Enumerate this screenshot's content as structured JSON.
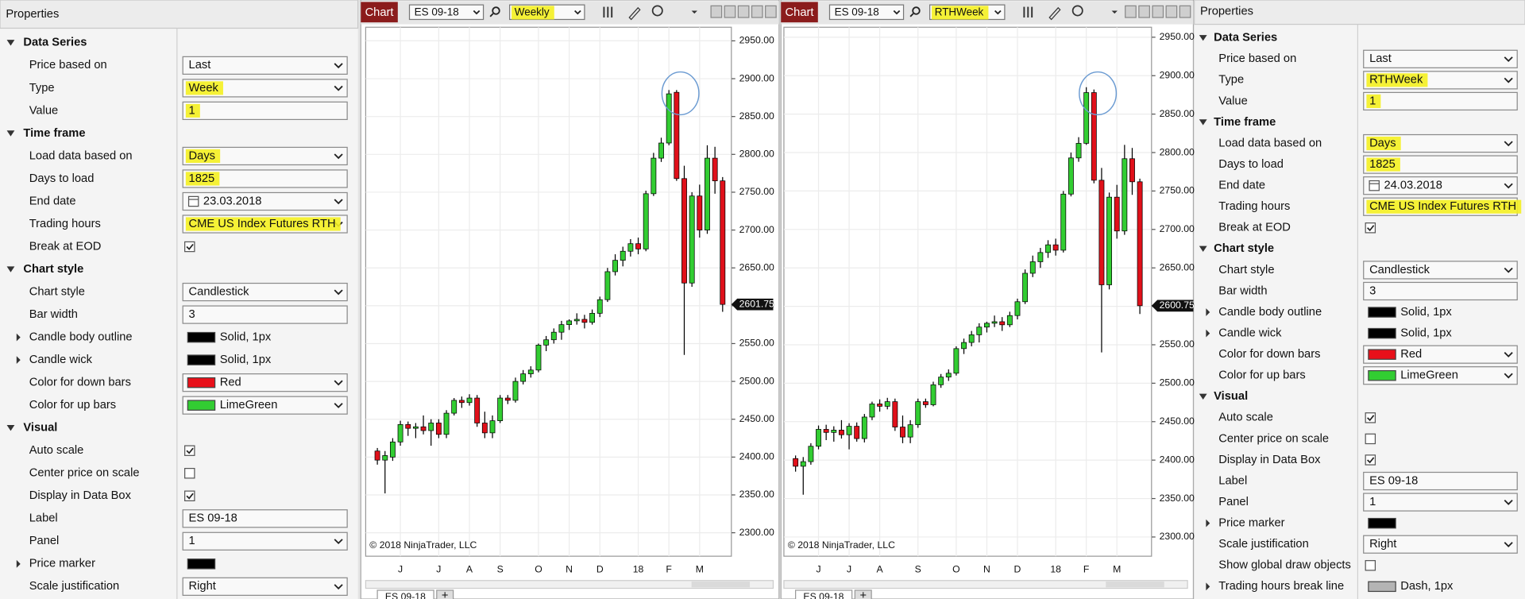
{
  "left_panel": {
    "title": "Properties",
    "sections": [
      {
        "name": "Data Series",
        "rows": [
          {
            "label": "Price based on",
            "kind": "dropdown",
            "value": "Last"
          },
          {
            "label": "Type",
            "kind": "dropdown",
            "value": "Week",
            "highlight": true
          },
          {
            "label": "Value",
            "kind": "text",
            "value": "1",
            "highlight": true
          }
        ]
      },
      {
        "name": "Time frame",
        "rows": [
          {
            "label": "Load data based on",
            "kind": "dropdown",
            "value": "Days",
            "highlight": true
          },
          {
            "label": "Days to load",
            "kind": "text",
            "value": "1825",
            "highlight": true
          },
          {
            "label": "End date",
            "kind": "dropdown",
            "value": "23.03.2018",
            "calendar": true
          },
          {
            "label": "Trading hours",
            "kind": "dropdown",
            "value": "CME US Index Futures RTH",
            "highlight": true
          },
          {
            "label": "Break at EOD",
            "kind": "checkbox",
            "checked": true
          }
        ]
      },
      {
        "name": "Chart style",
        "rows": [
          {
            "label": "Chart style",
            "kind": "dropdown",
            "value": "Candlestick"
          },
          {
            "label": "Bar width",
            "kind": "text",
            "value": "3"
          },
          {
            "label": "Candle body outline",
            "kind": "swatch",
            "expandable": true,
            "swatch": "#000000",
            "value": "Solid, 1px"
          },
          {
            "label": "Candle wick",
            "kind": "swatch",
            "expandable": true,
            "swatch": "#000000",
            "value": "Solid, 1px"
          },
          {
            "label": "Color for down bars",
            "kind": "dropdown",
            "swatch": "#e8101a",
            "value": "Red"
          },
          {
            "label": "Color for up bars",
            "kind": "dropdown",
            "swatch": "#32cd32",
            "value": "LimeGreen"
          }
        ]
      },
      {
        "name": "Visual",
        "rows": [
          {
            "label": "Auto scale",
            "kind": "checkbox",
            "checked": true
          },
          {
            "label": "Center price on scale",
            "kind": "checkbox",
            "checked": false
          },
          {
            "label": "Display in Data Box",
            "kind": "checkbox",
            "checked": true
          },
          {
            "label": "Label",
            "kind": "text",
            "value": "ES 09-18"
          },
          {
            "label": "Panel",
            "kind": "dropdown",
            "value": "1"
          },
          {
            "label": "Price marker",
            "kind": "swatch",
            "expandable": true,
            "swatch": "#000000"
          },
          {
            "label": "Scale justification",
            "kind": "dropdown",
            "value": "Right"
          }
        ]
      }
    ]
  },
  "charts": [
    {
      "toolbar": {
        "button": "Chart",
        "instrument": "ES 09-18",
        "period": "Weekly",
        "period_highlight": true
      },
      "copyright": "© 2018 NinjaTrader, LLC",
      "tab": "ES 09-18",
      "add_tab": "+",
      "up_color": "#32cd32",
      "down_color": "#e0101a",
      "ylim": [
        2269,
        2968
      ],
      "yticks": [
        {
          "value": 2300,
          "label": "2300.00"
        },
        {
          "value": 2350,
          "label": "2350.00"
        },
        {
          "value": 2400,
          "label": "2400.00"
        },
        {
          "value": 2450,
          "label": "2450.00"
        },
        {
          "value": 2500,
          "label": "2500.00"
        },
        {
          "value": 2550,
          "label": "2550.00"
        },
        {
          "value": 2600,
          "label": "2600.00"
        },
        {
          "value": 2650,
          "label": "2650.00"
        },
        {
          "value": 2700,
          "label": "2700.00"
        },
        {
          "value": 2750,
          "label": "2750.00"
        },
        {
          "value": 2800,
          "label": "2800.00"
        },
        {
          "value": 2850,
          "label": "2850.00"
        },
        {
          "value": 2900,
          "label": "2900.00"
        },
        {
          "value": 2950,
          "label": "2950.00"
        }
      ],
      "categories": [
        null,
        null,
        null,
        "J",
        null,
        null,
        null,
        null,
        "J",
        null,
        null,
        null,
        "A",
        null,
        null,
        null,
        "S",
        null,
        null,
        null,
        null,
        "O",
        null,
        null,
        null,
        "N",
        null,
        null,
        null,
        "D",
        null,
        null,
        null,
        null,
        "18",
        null,
        null,
        null,
        "F",
        null,
        null,
        null,
        "M",
        null,
        null,
        null
      ],
      "ohlc": [
        [
          2408,
          2412,
          2390,
          2396
        ],
        [
          2396,
          2408,
          2352,
          2402
        ],
        [
          2400,
          2425,
          2395,
          2420
        ],
        [
          2420,
          2448,
          2415,
          2443
        ],
        [
          2443,
          2447,
          2428,
          2438
        ],
        [
          2438,
          2445,
          2425,
          2440
        ],
        [
          2440,
          2455,
          2430,
          2435
        ],
        [
          2435,
          2450,
          2415,
          2445
        ],
        [
          2445,
          2450,
          2425,
          2430
        ],
        [
          2430,
          2462,
          2425,
          2458
        ],
        [
          2458,
          2478,
          2455,
          2475
        ],
        [
          2475,
          2480,
          2465,
          2472
        ],
        [
          2472,
          2483,
          2468,
          2478
        ],
        [
          2478,
          2482,
          2440,
          2445
        ],
        [
          2445,
          2460,
          2425,
          2432
        ],
        [
          2432,
          2455,
          2425,
          2448
        ],
        [
          2448,
          2482,
          2445,
          2478
        ],
        [
          2478,
          2482,
          2470,
          2475
        ],
        [
          2475,
          2505,
          2472,
          2500
        ],
        [
          2500,
          2515,
          2496,
          2510
        ],
        [
          2510,
          2520,
          2505,
          2515
        ],
        [
          2515,
          2550,
          2512,
          2548
        ],
        [
          2548,
          2560,
          2540,
          2555
        ],
        [
          2555,
          2570,
          2550,
          2565
        ],
        [
          2565,
          2580,
          2555,
          2575
        ],
        [
          2575,
          2582,
          2568,
          2580
        ],
        [
          2580,
          2590,
          2575,
          2582
        ],
        [
          2582,
          2588,
          2570,
          2578
        ],
        [
          2578,
          2595,
          2575,
          2590
        ],
        [
          2590,
          2612,
          2585,
          2608
        ],
        [
          2608,
          2650,
          2605,
          2645
        ],
        [
          2645,
          2668,
          2640,
          2660
        ],
        [
          2660,
          2678,
          2652,
          2672
        ],
        [
          2672,
          2688,
          2665,
          2682
        ],
        [
          2682,
          2690,
          2668,
          2675
        ],
        [
          2675,
          2752,
          2672,
          2748
        ],
        [
          2748,
          2802,
          2745,
          2795
        ],
        [
          2795,
          2822,
          2790,
          2815
        ],
        [
          2815,
          2885,
          2812,
          2880
        ],
        [
          2882,
          2885,
          2765,
          2768
        ],
        [
          2768,
          2785,
          2535,
          2630
        ],
        [
          2630,
          2750,
          2625,
          2745
        ],
        [
          2745,
          2760,
          2690,
          2700
        ],
        [
          2700,
          2812,
          2695,
          2795
        ],
        [
          2795,
          2810,
          2748,
          2765
        ],
        [
          2765,
          2770,
          2592,
          2601.75
        ]
      ]
    },
    {
      "toolbar": {
        "button": "Chart",
        "instrument": "ES 09-18",
        "period": "RTHWeek",
        "period_highlight": true
      },
      "copyright": "© 2018 NinjaTrader, LLC",
      "tab": "ES 09-18",
      "add_tab": "+",
      "up_color": "#32cd32",
      "down_color": "#e0101a",
      "ylim": [
        2275,
        2963
      ],
      "yticks": [
        {
          "value": 2300,
          "label": "2300.00"
        },
        {
          "value": 2350,
          "label": "2350.00"
        },
        {
          "value": 2400,
          "label": "2400.00"
        },
        {
          "value": 2450,
          "label": "2450.00"
        },
        {
          "value": 2500,
          "label": "2500.00"
        },
        {
          "value": 2550,
          "label": "2550.00"
        },
        {
          "value": 2600,
          "label": "2600.00"
        },
        {
          "value": 2650,
          "label": "2650.00"
        },
        {
          "value": 2700,
          "label": "2700.00"
        },
        {
          "value": 2750,
          "label": "2750.00"
        },
        {
          "value": 2800,
          "label": "2800.00"
        },
        {
          "value": 2850,
          "label": "2850.00"
        },
        {
          "value": 2900,
          "label": "2900.00"
        },
        {
          "value": 2950,
          "label": "2950.00"
        }
      ],
      "categories": [
        null,
        null,
        null,
        "J",
        null,
        null,
        null,
        "J",
        null,
        null,
        null,
        "A",
        null,
        null,
        null,
        null,
        "S",
        null,
        null,
        null,
        null,
        "O",
        null,
        null,
        null,
        "N",
        null,
        null,
        null,
        "D",
        null,
        null,
        null,
        null,
        "18",
        null,
        null,
        null,
        "F",
        null,
        null,
        null,
        "M",
        null,
        null,
        null
      ],
      "ohlc": [
        [
          2402,
          2406,
          2385,
          2392
        ],
        [
          2392,
          2404,
          2355,
          2398
        ],
        [
          2398,
          2422,
          2394,
          2418
        ],
        [
          2418,
          2445,
          2414,
          2440
        ],
        [
          2440,
          2446,
          2426,
          2436
        ],
        [
          2436,
          2444,
          2424,
          2439
        ],
        [
          2439,
          2452,
          2428,
          2433
        ],
        [
          2433,
          2448,
          2414,
          2444
        ],
        [
          2444,
          2449,
          2424,
          2428
        ],
        [
          2428,
          2460,
          2423,
          2456
        ],
        [
          2456,
          2476,
          2452,
          2473
        ],
        [
          2473,
          2479,
          2463,
          2470
        ],
        [
          2470,
          2481,
          2466,
          2476
        ],
        [
          2476,
          2480,
          2438,
          2443
        ],
        [
          2443,
          2458,
          2422,
          2430
        ],
        [
          2430,
          2452,
          2422,
          2446
        ],
        [
          2446,
          2480,
          2442,
          2476
        ],
        [
          2476,
          2480,
          2468,
          2472
        ],
        [
          2472,
          2502,
          2470,
          2498
        ],
        [
          2498,
          2512,
          2494,
          2508
        ],
        [
          2508,
          2518,
          2503,
          2513
        ],
        [
          2513,
          2548,
          2510,
          2545
        ],
        [
          2545,
          2558,
          2538,
          2553
        ],
        [
          2553,
          2568,
          2548,
          2563
        ],
        [
          2563,
          2578,
          2553,
          2573
        ],
        [
          2573,
          2580,
          2566,
          2578
        ],
        [
          2578,
          2588,
          2573,
          2580
        ],
        [
          2580,
          2586,
          2568,
          2576
        ],
        [
          2576,
          2593,
          2573,
          2588
        ],
        [
          2588,
          2610,
          2583,
          2606
        ],
        [
          2606,
          2648,
          2603,
          2643
        ],
        [
          2643,
          2666,
          2638,
          2658
        ],
        [
          2658,
          2676,
          2650,
          2670
        ],
        [
          2670,
          2686,
          2663,
          2680
        ],
        [
          2680,
          2688,
          2666,
          2673
        ],
        [
          2673,
          2750,
          2670,
          2746
        ],
        [
          2746,
          2800,
          2743,
          2793
        ],
        [
          2793,
          2820,
          2788,
          2812
        ],
        [
          2812,
          2885,
          2810,
          2878
        ],
        [
          2878,
          2882,
          2760,
          2764
        ],
        [
          2764,
          2780,
          2540,
          2628
        ],
        [
          2628,
          2748,
          2622,
          2742
        ],
        [
          2742,
          2758,
          2688,
          2698
        ],
        [
          2698,
          2810,
          2693,
          2792
        ],
        [
          2792,
          2806,
          2745,
          2762
        ],
        [
          2762,
          2766,
          2590,
          2600.75
        ]
      ]
    }
  ],
  "right_panel": {
    "title": "Properties",
    "sections": [
      {
        "name": "Data Series",
        "rows": [
          {
            "label": "Price based on",
            "kind": "dropdown",
            "value": "Last"
          },
          {
            "label": "Type",
            "kind": "dropdown",
            "value": "RTHWeek",
            "highlight": true
          },
          {
            "label": "Value",
            "kind": "text",
            "value": "1",
            "highlight": true
          }
        ]
      },
      {
        "name": "Time frame",
        "rows": [
          {
            "label": "Load data based on",
            "kind": "dropdown",
            "value": "Days",
            "highlight": true
          },
          {
            "label": "Days to load",
            "kind": "text",
            "value": "1825",
            "highlight": true
          },
          {
            "label": "End date",
            "kind": "dropdown",
            "value": "24.03.2018",
            "calendar": true
          },
          {
            "label": "Trading hours",
            "kind": "dropdown",
            "value": "CME US Index Futures RTH",
            "highlight": true
          },
          {
            "label": "Break at EOD",
            "kind": "checkbox",
            "checked": true
          }
        ]
      },
      {
        "name": "Chart style",
        "rows": [
          {
            "label": "Chart style",
            "kind": "dropdown",
            "value": "Candlestick"
          },
          {
            "label": "Bar width",
            "kind": "text",
            "value": "3"
          },
          {
            "label": "Candle body outline",
            "kind": "swatch",
            "expandable": true,
            "swatch": "#000000",
            "value": "Solid, 1px"
          },
          {
            "label": "Candle wick",
            "kind": "swatch",
            "expandable": true,
            "swatch": "#000000",
            "value": "Solid, 1px"
          },
          {
            "label": "Color for down bars",
            "kind": "dropdown",
            "swatch": "#e8101a",
            "value": "Red"
          },
          {
            "label": "Color for up bars",
            "kind": "dropdown",
            "swatch": "#32cd32",
            "value": "LimeGreen"
          }
        ]
      },
      {
        "name": "Visual",
        "rows": [
          {
            "label": "Auto scale",
            "kind": "checkbox",
            "checked": true
          },
          {
            "label": "Center price on scale",
            "kind": "checkbox",
            "checked": false
          },
          {
            "label": "Display in Data Box",
            "kind": "checkbox",
            "checked": true
          },
          {
            "label": "Label",
            "kind": "text",
            "value": "ES 09-18"
          },
          {
            "label": "Panel",
            "kind": "dropdown",
            "value": "1"
          },
          {
            "label": "Price marker",
            "kind": "swatch",
            "expandable": true,
            "swatch": "#000000"
          },
          {
            "label": "Scale justification",
            "kind": "dropdown",
            "value": "Right"
          },
          {
            "label": "Show global draw objects",
            "kind": "checkbox",
            "checked": false
          },
          {
            "label": "Trading hours break line",
            "kind": "swatch",
            "expandable": true,
            "swatch": "#b4b4b4",
            "value": "Dash, 1px"
          }
        ]
      }
    ]
  }
}
